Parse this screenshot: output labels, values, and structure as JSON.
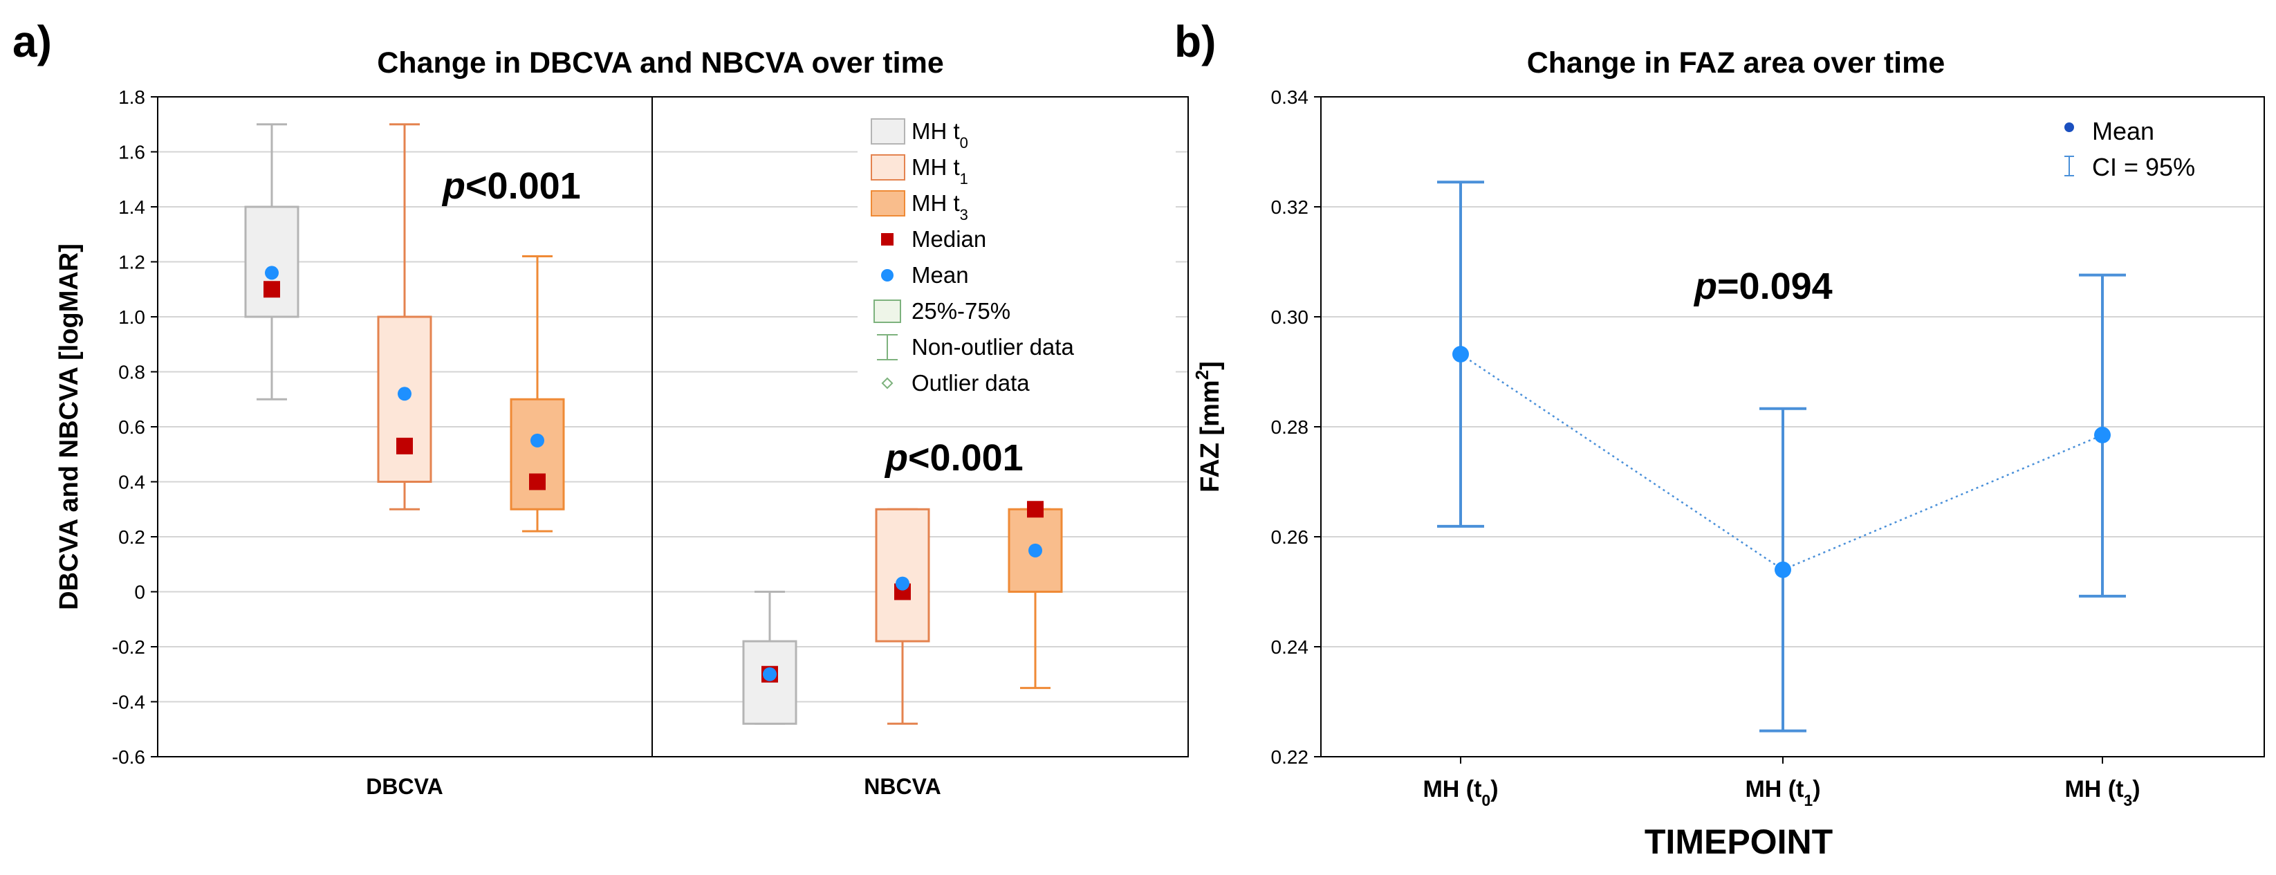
{
  "panel_labels": {
    "a": "a)",
    "b": "b)"
  },
  "colors": {
    "t0_stroke": "#b4b4b4",
    "t0_fill": "#efefef",
    "t1_stroke": "#e4834f",
    "t1_fill": "#fde6d8",
    "t3_stroke": "#ef8a36",
    "t3_fill": "#f9bd8c",
    "median": "#c00000",
    "mean_a": "#1e90ff",
    "mean_b": "#1e90ff",
    "ci": "#4a90d9",
    "grid": "#d4d4d4",
    "legend_green": "#7db27d"
  },
  "chart_data": [
    {
      "type": "box",
      "title": "Change in DBCVA and NBCVA over time",
      "xlabel": "",
      "ylabel": "DBCVA and NBCVA  [logMAR]",
      "ylim": [
        -0.6,
        1.8
      ],
      "yticks": [
        "-0.6",
        "-0.4",
        "-0.2",
        "0",
        "0.2",
        "0.4",
        "0.6",
        "0.8",
        "1.0",
        "1.2",
        "1.4",
        "1.6",
        "1.8"
      ],
      "grid": true,
      "legend_position": "top-right",
      "categories": [
        "DBCVA",
        "NBCVA"
      ],
      "annotations": [
        {
          "category": "DBCVA",
          "p_label": "p",
          "p_value": "<0.001"
        },
        {
          "category": "NBCVA",
          "p_label": "p",
          "p_value": "<0.001"
        }
      ],
      "legend": [
        {
          "kind": "box",
          "key": "t0",
          "label": "MH t",
          "sub": "0"
        },
        {
          "kind": "box",
          "key": "t1",
          "label": "MH t",
          "sub": "1"
        },
        {
          "kind": "box",
          "key": "t3",
          "label": "MH t",
          "sub": "3"
        },
        {
          "kind": "median",
          "label": "Median"
        },
        {
          "kind": "mean",
          "label": "Mean"
        },
        {
          "kind": "iqr",
          "label": "25%-75%"
        },
        {
          "kind": "whisker",
          "label": "Non-outlier data"
        },
        {
          "kind": "outlier",
          "label": "Outlier data"
        }
      ],
      "series": [
        {
          "name": "MH t0",
          "key": "t0",
          "values": [
            {
              "category": "DBCVA",
              "min": 0.7,
              "q1": 1.0,
              "median": 1.1,
              "q3": 1.4,
              "max": 1.7,
              "mean": 1.16
            },
            {
              "category": "NBCVA",
              "min": -0.48,
              "q1": -0.48,
              "median": -0.3,
              "q3": -0.18,
              "max": 0.0,
              "mean": -0.3
            }
          ]
        },
        {
          "name": "MH t1",
          "key": "t1",
          "values": [
            {
              "category": "DBCVA",
              "min": 0.3,
              "q1": 0.4,
              "median": 0.53,
              "q3": 1.0,
              "max": 1.7,
              "mean": 0.72
            },
            {
              "category": "NBCVA",
              "min": -0.48,
              "q1": -0.18,
              "median": 0.0,
              "q3": 0.3,
              "max": 0.3,
              "mean": 0.03
            }
          ]
        },
        {
          "name": "MH t3",
          "key": "t3",
          "values": [
            {
              "category": "DBCVA",
              "min": 0.22,
              "q1": 0.3,
              "median": 0.4,
              "q3": 0.7,
              "max": 1.22,
              "mean": 0.55
            },
            {
              "category": "NBCVA",
              "min": -0.35,
              "q1": 0.0,
              "median": 0.3,
              "q3": 0.3,
              "max": 0.3,
              "mean": 0.15
            }
          ]
        }
      ]
    },
    {
      "type": "line",
      "title": "Change in FAZ area over time",
      "xlabel": "TIMEPOINT",
      "ylabel": "FAZ  [mm",
      "ylabel_sup": "2",
      "ylabel_end": "]",
      "ylim": [
        0.22,
        0.34
      ],
      "yticks": [
        "0.22",
        "0.24",
        "0.26",
        "0.28",
        "0.30",
        "0.32",
        "0.34"
      ],
      "grid": true,
      "legend_position": "top-right",
      "legend": [
        {
          "kind": "mean",
          "label": "Mean"
        },
        {
          "kind": "ci",
          "label": "CI = 95%"
        }
      ],
      "annotation": {
        "p_label": "p",
        "p_value": "=0.094"
      },
      "categories": [
        {
          "label": "MH (t",
          "sub": "0",
          "end": ")"
        },
        {
          "label": "MH (t",
          "sub": "1",
          "end": ")"
        },
        {
          "label": "MH (t",
          "sub": "3",
          "end": ")"
        }
      ],
      "series": [
        {
          "name": "Mean",
          "values": [
            0.2932,
            0.254,
            0.2785
          ]
        },
        {
          "name": "CI lower",
          "values": [
            0.2619,
            0.2247,
            0.2492
          ]
        },
        {
          "name": "CI upper",
          "values": [
            0.3245,
            0.2833,
            0.3076
          ]
        }
      ]
    }
  ]
}
